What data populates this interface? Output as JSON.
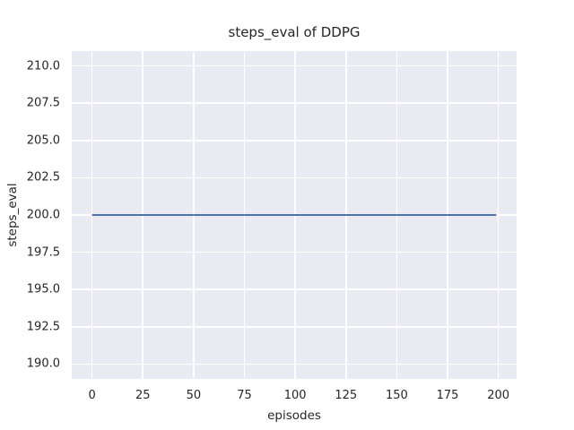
{
  "colors": {
    "figure_bg": "#ffffff",
    "plot_bg": "#eaeaf2",
    "grid": "#ffffff",
    "text": "#262626",
    "line": "#4c72b0"
  },
  "chart_data": {
    "type": "line",
    "title": "steps_eval of DDPG",
    "xlabel": "episodes",
    "ylabel": "steps_eval",
    "xlim": [
      -10,
      209
    ],
    "ylim": [
      189,
      211
    ],
    "grid": true,
    "legend": "none",
    "xtick_values": [
      0,
      25,
      50,
      75,
      100,
      125,
      150,
      175,
      200
    ],
    "xtick_labels": [
      "0",
      "25",
      "50",
      "75",
      "100",
      "125",
      "150",
      "175",
      "200"
    ],
    "ytick_values": [
      190.0,
      192.5,
      195.0,
      197.5,
      200.0,
      202.5,
      205.0,
      207.5,
      210.0
    ],
    "ytick_labels": [
      "190.0",
      "192.5",
      "195.0",
      "197.5",
      "200.0",
      "202.5",
      "205.0",
      "207.5",
      "210.0"
    ],
    "series": [
      {
        "name": "DDPG",
        "color": "#4c72b0",
        "line_width": 2,
        "x": [
          0,
          199
        ],
        "y": [
          200,
          200
        ]
      }
    ]
  }
}
